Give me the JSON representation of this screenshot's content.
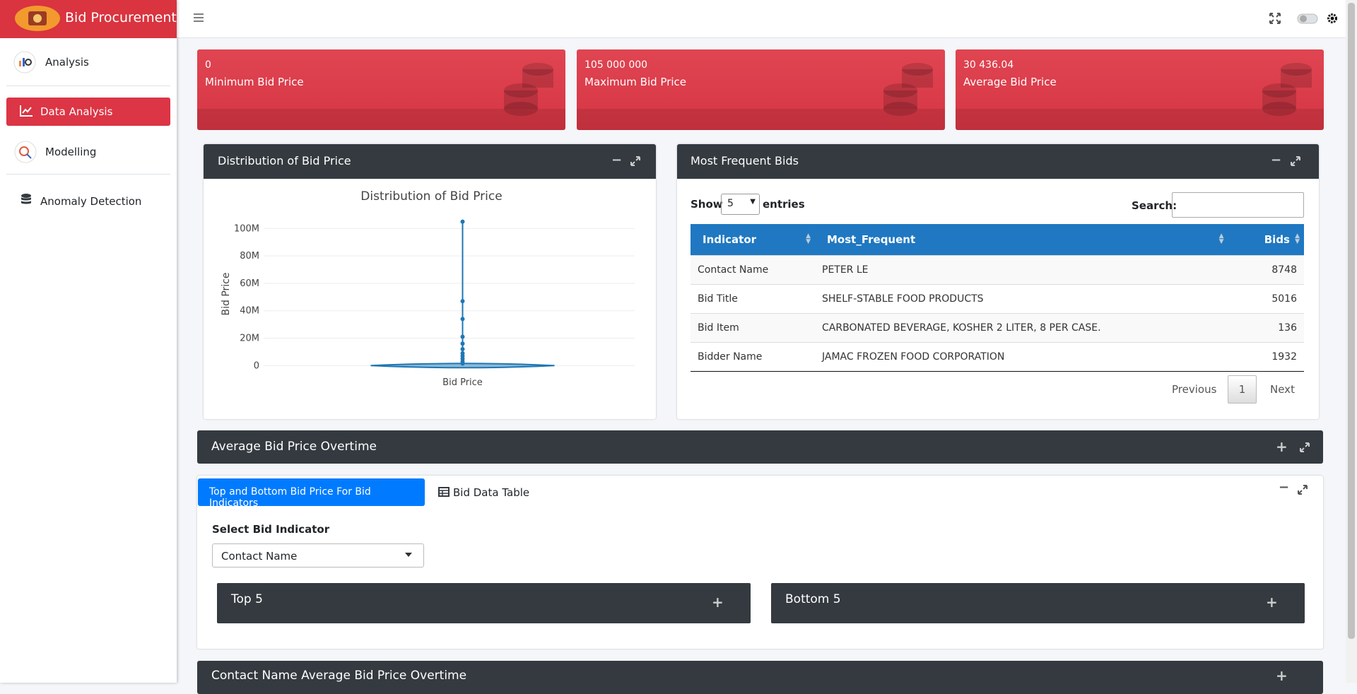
{
  "header": {
    "brand": "Bid Procurement"
  },
  "sidebar": {
    "items": [
      "Analysis",
      "Data Analysis",
      "Modelling",
      "Anomaly Detection"
    ]
  },
  "stats": [
    {
      "value": "0",
      "label": "Minimum Bid Price"
    },
    {
      "value": "105 000 000",
      "label": "Maximum Bid Price"
    },
    {
      "value": "30 436.04",
      "label": "Average Bid Price"
    }
  ],
  "distribution_card": {
    "title": "Distribution of Bid Price"
  },
  "chart_data": {
    "type": "violin",
    "title": "Distribution of Bid Price",
    "y_label": "Bid Price",
    "categories": [
      "Bid Price"
    ],
    "color": "#1f77b4",
    "values": [
      105000000,
      47000000,
      34000000,
      21000000,
      16000000,
      12000000,
      9000000,
      7000000,
      5000000,
      3000000,
      1500000
    ],
    "ylim": [
      -5000000,
      112000000
    ],
    "yticks": [
      0,
      {
        "value": 20000000,
        "label": "20M"
      },
      {
        "value": 40000000,
        "label": "40M"
      },
      {
        "value": 60000000,
        "label": "60M"
      },
      {
        "value": 80000000,
        "label": "80M"
      },
      {
        "value": 100000000,
        "label": "100M"
      }
    ],
    "grid": true
  },
  "frequent_card": {
    "title": "Most Frequent Bids",
    "show": "Show",
    "entries_select": "5",
    "entries": "entries",
    "search": "Search:",
    "table": {
      "columns": [
        "Indicator",
        "Most_Frequent",
        "Bids"
      ],
      "rows": [
        [
          "Contact Name",
          "PETER LE",
          "8748"
        ],
        [
          "Bid Title",
          "SHELF-STABLE FOOD PRODUCTS",
          "5016"
        ],
        [
          "Bid Item",
          "CARBONATED BEVERAGE, KOSHER 2 LITER, 8 PER CASE.",
          "136"
        ],
        [
          "Bidder Name",
          "JAMAC FROZEN FOOD CORPORATION",
          "1932"
        ]
      ]
    },
    "pagination": {
      "previous": "Previous",
      "page": "1",
      "next": "Next"
    }
  },
  "overtime_bar": {
    "title": "Average Bid Price Overtime"
  },
  "tabs_card": {
    "tabs": [
      "Top and Bottom Bid Price For Bid Indicators",
      "Bid Data Table"
    ],
    "select_label": "Select Bid Indicator",
    "select_value": "Contact Name",
    "top": "Top 5",
    "bottom": "Bottom 5"
  },
  "contact_bar": {
    "title": "Contact Name Average Bid Price Overtime"
  }
}
